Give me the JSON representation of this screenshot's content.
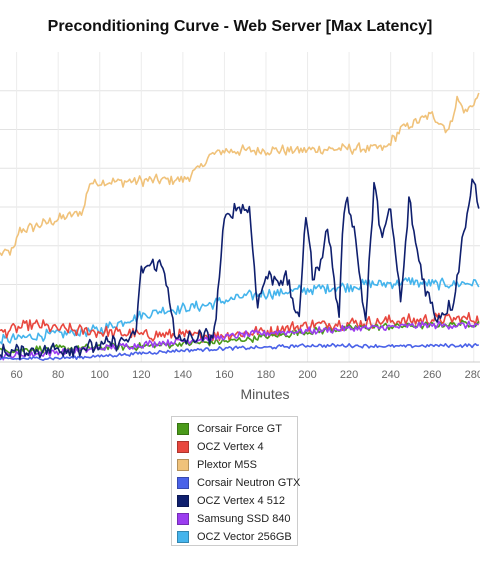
{
  "chart_data": {
    "type": "line",
    "title": "Preconditioning Curve - Web Server [Max Latency]",
    "xlabel": "Minutes",
    "ylabel": "",
    "xlim": [
      52,
      283
    ],
    "ylim": [
      0,
      320
    ],
    "x_ticks": [
      "60",
      "80",
      "100",
      "120",
      "140",
      "160",
      "180",
      "200",
      "220",
      "240",
      "260",
      "280"
    ],
    "x_tick_values": [
      60,
      80,
      100,
      120,
      140,
      160,
      180,
      200,
      220,
      240,
      260,
      280
    ],
    "y_gridlines": [
      40,
      80,
      120,
      160,
      200,
      240,
      280
    ],
    "grid": true,
    "legend_position": "bottom",
    "series": [
      {
        "name": "Corsair Force GT",
        "color": "#4a9a1a",
        "x": [
          52,
          80,
          100,
          120,
          140,
          160,
          180,
          200,
          220,
          240,
          260,
          283
        ],
        "values": [
          12,
          14,
          15,
          16,
          19,
          21,
          26,
          31,
          35,
          37,
          38,
          40
        ]
      },
      {
        "name": "OCZ Vertex 4",
        "color": "#e8473e",
        "x": [
          52,
          60,
          70,
          80,
          100,
          120,
          140,
          160,
          180,
          200,
          220,
          240,
          260,
          283
        ],
        "values": [
          30,
          35,
          38,
          34,
          31,
          28,
          27,
          28,
          32,
          38,
          40,
          42,
          44,
          45
        ]
      },
      {
        "name": "Plextor M5S",
        "color": "#f0c27a",
        "x": [
          52,
          59,
          61,
          92,
          95,
          141,
          148,
          153,
          160,
          200,
          238,
          245,
          260,
          268,
          272,
          276,
          283
        ],
        "values": [
          111,
          116,
          135,
          155,
          185,
          189,
          200,
          213,
          218,
          219,
          221,
          241,
          255,
          239,
          272,
          257,
          276
        ]
      },
      {
        "name": "Corsair Neutron GTX",
        "color": "#4a62e8",
        "x": [
          52,
          80,
          100,
          120,
          140,
          160,
          180,
          200,
          220,
          240,
          260,
          283
        ],
        "values": [
          3,
          4,
          6,
          9,
          12,
          14,
          15,
          17,
          17,
          16,
          17,
          17
        ]
      },
      {
        "name": "OCZ Vertex 4 512",
        "color": "#0f1f6e",
        "x": [
          52,
          100,
          117,
          120,
          122,
          127,
          130,
          133,
          136,
          137,
          140,
          155,
          158,
          160,
          165,
          172,
          176,
          180,
          190,
          196,
          199,
          203,
          210,
          215,
          218,
          222,
          228,
          232,
          236,
          240,
          245,
          249,
          252,
          257,
          262,
          270,
          277,
          280,
          283
        ],
        "values": [
          10,
          16,
          25,
          95,
          98,
          101,
          99,
          78,
          25,
          21,
          23,
          28,
          100,
          145,
          160,
          157,
          60,
          88,
          85,
          40,
          158,
          82,
          138,
          45,
          175,
          145,
          40,
          182,
          130,
          156,
          60,
          170,
          122,
          75,
          45,
          60,
          160,
          190,
          145
        ]
      },
      {
        "name": "Samsung SSD 840",
        "color": "#9b3df0",
        "x": [
          52,
          80,
          100,
          120,
          140,
          160,
          180,
          200,
          220,
          240,
          260,
          283
        ],
        "values": [
          6,
          10,
          14,
          18,
          22,
          26,
          30,
          32,
          34,
          36,
          38,
          38
        ]
      },
      {
        "name": "OCZ Vector 256GB",
        "color": "#45b4ec",
        "x": [
          52,
          70,
          100,
          115,
          130,
          150,
          170,
          200,
          230,
          250,
          260,
          283
        ],
        "values": [
          22,
          27,
          33,
          45,
          53,
          58,
          68,
          75,
          80,
          83,
          80,
          82
        ]
      }
    ]
  }
}
